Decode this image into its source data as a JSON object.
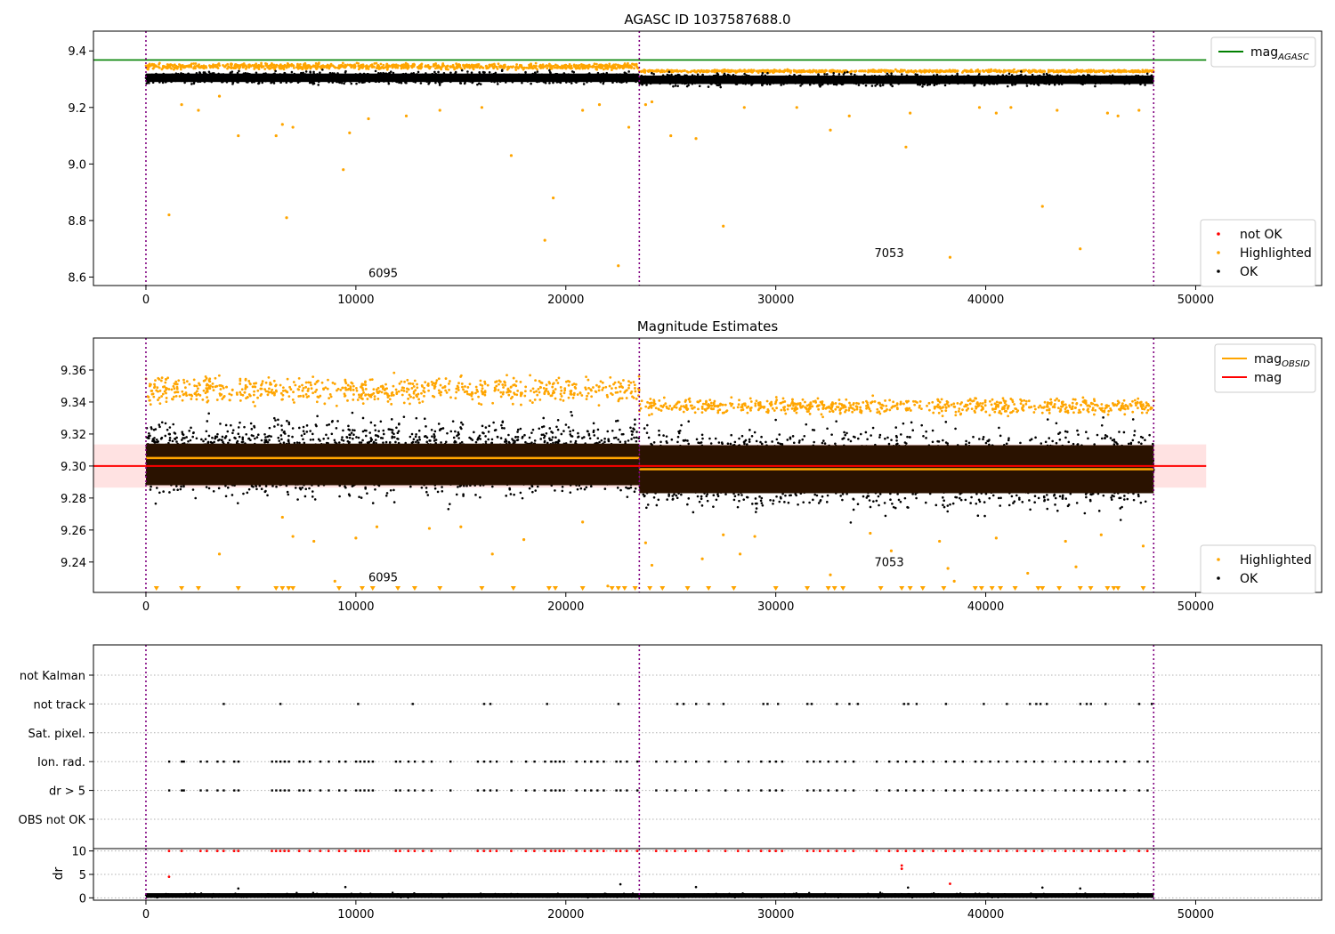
{
  "chart_data": [
    {
      "type": "scatter",
      "title": "AGASC ID 1037587688.0",
      "xlim": [
        -2500,
        56000
      ],
      "ylim": [
        8.57,
        9.47
      ],
      "xticks": [
        0,
        10000,
        20000,
        30000,
        40000,
        50000
      ],
      "xticklabels": [
        "0",
        "10000",
        "20000",
        "30000",
        "40000",
        "50000"
      ],
      "yticks": [
        8.6,
        8.8,
        9.0,
        9.2,
        9.4
      ],
      "yticklabels": [
        "8.6",
        "8.8",
        "9.0",
        "9.2",
        "9.4"
      ],
      "obs_boundaries": [
        0,
        23500,
        48000
      ],
      "obs_labels": [
        {
          "text": "6095",
          "x": 11300,
          "y": 8.6
        },
        {
          "text": "7053",
          "x": 35400,
          "y": 8.67
        }
      ],
      "lines": [
        {
          "name": "mag_AGASC",
          "y": 9.368,
          "x": [
            -2500,
            50500
          ],
          "color": "#008000"
        }
      ],
      "ok_band": [
        {
          "x": [
            0,
            23500
          ],
          "y": [
            9.275,
            9.335
          ]
        },
        {
          "x": [
            23500,
            48000
          ],
          "y": [
            9.268,
            9.328
          ]
        }
      ],
      "highlighted_band": [
        {
          "x": [
            0,
            23500
          ],
          "y": [
            9.33,
            9.36
          ]
        },
        {
          "x": [
            23500,
            48000
          ],
          "y": [
            9.322,
            9.335
          ]
        }
      ],
      "highlighted_outliers": [
        [
          1100,
          8.82
        ],
        [
          1700,
          9.21
        ],
        [
          2500,
          9.19
        ],
        [
          3500,
          9.24
        ],
        [
          4400,
          9.1
        ],
        [
          6200,
          9.1
        ],
        [
          6500,
          9.14
        ],
        [
          6700,
          8.81
        ],
        [
          7000,
          9.13
        ],
        [
          9400,
          8.98
        ],
        [
          9700,
          9.11
        ],
        [
          10600,
          9.16
        ],
        [
          12400,
          9.17
        ],
        [
          14000,
          9.19
        ],
        [
          16000,
          9.2
        ],
        [
          17400,
          9.03
        ],
        [
          19000,
          8.73
        ],
        [
          19400,
          8.88
        ],
        [
          20800,
          9.19
        ],
        [
          21600,
          9.21
        ],
        [
          22500,
          8.64
        ],
        [
          23000,
          9.13
        ],
        [
          23800,
          9.21
        ],
        [
          24100,
          9.22
        ],
        [
          25000,
          9.1
        ],
        [
          26200,
          9.09
        ],
        [
          27500,
          8.78
        ],
        [
          28500,
          9.2
        ],
        [
          31000,
          9.2
        ],
        [
          32600,
          9.12
        ],
        [
          33500,
          9.17
        ],
        [
          36200,
          9.06
        ],
        [
          36400,
          9.18
        ],
        [
          38300,
          8.67
        ],
        [
          39700,
          9.2
        ],
        [
          40500,
          9.18
        ],
        [
          41200,
          9.2
        ],
        [
          42700,
          8.85
        ],
        [
          43400,
          9.19
        ],
        [
          44500,
          8.7
        ],
        [
          45800,
          9.18
        ],
        [
          46300,
          9.17
        ],
        [
          47300,
          9.19
        ]
      ],
      "legend_upper": [
        {
          "label": "mag",
          "subscript": "AGASC",
          "color": "#008000",
          "kind": "line"
        }
      ],
      "legend_lower": [
        {
          "label": "not OK",
          "color": "#ff0000",
          "kind": "dot"
        },
        {
          "label": "Highlighted",
          "color": "#ffa500",
          "kind": "dot"
        },
        {
          "label": "OK",
          "color": "#000000",
          "kind": "dot"
        }
      ]
    },
    {
      "type": "scatter",
      "title": "Magnitude Estimates",
      "xlim": [
        -2500,
        56000
      ],
      "ylim": [
        9.221,
        9.38
      ],
      "xticks": [
        0,
        10000,
        20000,
        30000,
        40000,
        50000
      ],
      "xticklabels": [
        "0",
        "10000",
        "20000",
        "30000",
        "40000",
        "50000"
      ],
      "yticks": [
        9.24,
        9.26,
        9.28,
        9.3,
        9.32,
        9.34,
        9.36
      ],
      "yticklabels": [
        "9.24",
        "9.26",
        "9.28",
        "9.30",
        "9.32",
        "9.34",
        "9.36"
      ],
      "obs_boundaries": [
        0,
        23500,
        48000
      ],
      "obs_labels": [
        {
          "text": "6095",
          "x": 11300,
          "y": 9.228
        },
        {
          "text": "7053",
          "x": 35400,
          "y": 9.2375
        }
      ],
      "mag": 9.3,
      "mag_band": [
        9.2865,
        9.3135
      ],
      "mag_obsid": [
        {
          "x": [
            0,
            23500
          ],
          "y": 9.305
        },
        {
          "x": [
            23500,
            48000
          ],
          "y": 9.298
        }
      ],
      "obs_bands": [
        {
          "x": [
            0,
            23500
          ],
          "y": [
            9.288,
            9.314
          ]
        },
        {
          "x": [
            23500,
            48000
          ],
          "y": [
            9.283,
            9.313
          ]
        }
      ],
      "ok_range": [
        {
          "x": [
            0,
            23500
          ],
          "y": [
            9.272,
            9.338
          ]
        },
        {
          "x": [
            23500,
            48000
          ],
          "y": [
            9.265,
            9.332
          ]
        }
      ],
      "highlighted_range": [
        {
          "x": [
            0,
            23500
          ],
          "y": [
            9.335,
            9.36
          ]
        },
        {
          "x": [
            23500,
            48000
          ],
          "y": [
            9.33,
            9.345
          ]
        }
      ],
      "highlighted_low": [
        [
          3500,
          9.245
        ],
        [
          6500,
          9.268
        ],
        [
          7000,
          9.256
        ],
        [
          8000,
          9.253
        ],
        [
          9000,
          9.228
        ],
        [
          10000,
          9.255
        ],
        [
          11000,
          9.262
        ],
        [
          13500,
          9.261
        ],
        [
          15000,
          9.262
        ],
        [
          16500,
          9.245
        ],
        [
          18000,
          9.254
        ],
        [
          20800,
          9.265
        ],
        [
          22000,
          9.225
        ],
        [
          23800,
          9.252
        ],
        [
          24100,
          9.238
        ],
        [
          26500,
          9.242
        ],
        [
          27500,
          9.257
        ],
        [
          28300,
          9.245
        ],
        [
          29000,
          9.256
        ],
        [
          32600,
          9.232
        ],
        [
          34500,
          9.258
        ],
        [
          35500,
          9.247
        ],
        [
          37800,
          9.253
        ],
        [
          38200,
          9.236
        ],
        [
          38500,
          9.228
        ],
        [
          40500,
          9.255
        ],
        [
          42000,
          9.233
        ],
        [
          43800,
          9.253
        ],
        [
          44300,
          9.237
        ],
        [
          45500,
          9.257
        ],
        [
          47500,
          9.25
        ]
      ],
      "clipped_low_x": [
        500,
        1700,
        2500,
        4400,
        6200,
        6500,
        6800,
        7000,
        9200,
        10300,
        10800,
        12000,
        12800,
        14000,
        16000,
        17500,
        19200,
        19500,
        20800,
        22200,
        22500,
        22800,
        23300,
        24000,
        24600,
        25800,
        26800,
        28000,
        30000,
        31500,
        32500,
        32800,
        33200,
        35000,
        36000,
        36400,
        37000,
        38000,
        39500,
        39800,
        40300,
        40700,
        41400,
        42500,
        42700,
        43500,
        44500,
        45000,
        45800,
        46100,
        46300,
        47500
      ],
      "legend_upper": [
        {
          "label": "mag",
          "subscript": "OBSID",
          "color": "#ffa500",
          "kind": "line"
        },
        {
          "label": "mag",
          "subscript": "",
          "color": "#ff0000",
          "kind": "line"
        }
      ],
      "legend_lower": [
        {
          "label": "Highlighted",
          "color": "#ffa500",
          "kind": "dot"
        },
        {
          "label": "OK",
          "color": "#000000",
          "kind": "dot"
        }
      ]
    },
    {
      "type": "scatter",
      "title": "",
      "xlim": [
        -2500,
        56000
      ],
      "categories": [
        "not Kalman",
        "not track",
        "Sat. pixel.",
        "Ion. rad.",
        "dr > 5",
        "OBS not OK"
      ],
      "obs_boundaries": [
        0,
        23500,
        48000
      ],
      "flags": {
        "not Kalman": [],
        "not track": [
          3700,
          6400,
          10100,
          12700,
          16100,
          16400,
          19100,
          22500,
          25300,
          25600,
          26200,
          26800,
          27500,
          29400,
          29600,
          30100,
          31500,
          31700,
          32900,
          33500,
          33900,
          36100,
          36300,
          36700,
          38100,
          39900,
          41000,
          42100,
          42400,
          42600,
          42900,
          44500,
          44800,
          45000,
          45700,
          47300,
          47900
        ],
        "Ion. rad.": [
          1100,
          1700,
          1800,
          2600,
          2900,
          3400,
          3700,
          4200,
          4400,
          6000,
          6200,
          6400,
          6600,
          6800,
          7300,
          7500,
          7800,
          8300,
          8700,
          9200,
          9500,
          10000,
          10200,
          10400,
          10600,
          10800,
          11900,
          12100,
          12500,
          12800,
          13200,
          13600,
          14500,
          15800,
          16100,
          16400,
          16700,
          17400,
          18100,
          18500,
          19000,
          19300,
          19500,
          19700,
          19900,
          20500,
          20900,
          21200,
          21500,
          21800,
          22400,
          22600,
          22900,
          23400,
          24300,
          24800,
          25200,
          25700,
          26200,
          26800,
          27600,
          28200,
          28700,
          29300,
          29700,
          30000,
          30300,
          31500,
          31800,
          32100,
          32500,
          32900,
          33300,
          33700,
          34800,
          35400,
          35800,
          36200,
          36600,
          37000,
          37500,
          38100,
          38500,
          38900,
          39500,
          39800,
          40200,
          40600,
          41000,
          41500,
          41900,
          42300,
          42700,
          43300,
          43800,
          44200,
          44600,
          45000,
          45400,
          45800,
          46200,
          46600,
          47300,
          47700
        ],
        "dr > 5": [
          1100,
          1700,
          1800,
          2600,
          2900,
          3400,
          3700,
          4200,
          4400,
          6000,
          6200,
          6400,
          6600,
          6800,
          7300,
          7500,
          7800,
          8300,
          8700,
          9200,
          9500,
          10000,
          10200,
          10400,
          10600,
          10800,
          11900,
          12100,
          12500,
          12800,
          13200,
          13600,
          14500,
          15800,
          16100,
          16400,
          16700,
          17400,
          18100,
          18500,
          19000,
          19300,
          19500,
          19700,
          19900,
          20500,
          20900,
          21200,
          21500,
          21800,
          22400,
          22600,
          22900,
          23400,
          24300,
          24800,
          25200,
          25700,
          26200,
          26800,
          27600,
          28200,
          28700,
          29300,
          29700,
          30000,
          30300,
          31500,
          31800,
          32100,
          32500,
          32900,
          33300,
          33700,
          34800,
          35400,
          35800,
          36200,
          36600,
          37000,
          37500,
          38100,
          38500,
          38900,
          39500,
          39800,
          40200,
          40600,
          41000,
          41500,
          41900,
          42300,
          42700,
          43300,
          43800,
          44200,
          44600,
          45000,
          45400,
          45800,
          46200,
          46600,
          47300,
          47700
        ],
        "Sat. pixel.": [],
        "OBS not OK": []
      }
    },
    {
      "type": "scatter",
      "title": "",
      "ylabel": "dr",
      "xlim": [
        -2500,
        56000
      ],
      "ylim": [
        -0.5,
        10.5
      ],
      "xticks": [
        0,
        10000,
        20000,
        30000,
        40000,
        50000
      ],
      "xticklabels": [
        "0",
        "10000",
        "20000",
        "30000",
        "40000",
        "50000"
      ],
      "yticks": [
        0,
        5,
        10
      ],
      "yticklabels": [
        "0",
        "5",
        "10"
      ],
      "obs_boundaries": [
        0,
        23500,
        48000
      ],
      "ok_band": [
        0,
        1
      ],
      "red_at_10_x": [
        1100,
        1700,
        2600,
        2900,
        3400,
        3700,
        4200,
        4400,
        6000,
        6200,
        6400,
        6600,
        6800,
        7300,
        7800,
        8300,
        8700,
        9200,
        9500,
        10000,
        10200,
        10400,
        10600,
        11900,
        12100,
        12500,
        12800,
        13200,
        13600,
        14500,
        15800,
        16100,
        16400,
        16700,
        17400,
        18100,
        18500,
        19000,
        19300,
        19500,
        19700,
        19900,
        20500,
        20900,
        21200,
        21500,
        21800,
        22400,
        22600,
        22900,
        23400,
        24300,
        24800,
        25200,
        25700,
        26200,
        26800,
        27600,
        28200,
        28700,
        29300,
        29700,
        30000,
        30300,
        31500,
        31800,
        32100,
        32500,
        32900,
        33300,
        33700,
        34800,
        35400,
        35800,
        36200,
        36600,
        37000,
        37500,
        38100,
        38500,
        38900,
        39500,
        39800,
        40200,
        40600,
        41000,
        41500,
        41900,
        42300,
        42700,
        43300,
        43800,
        44200,
        44600,
        45000,
        45400,
        45800,
        46200,
        46600,
        47300,
        47700
      ],
      "red_outliers": [
        [
          1100,
          4.5
        ],
        [
          36000,
          6.2
        ],
        [
          36000,
          6.9
        ],
        [
          38300,
          3.0
        ]
      ],
      "black_outliers": [
        [
          4400,
          2.0
        ],
        [
          9500,
          2.3
        ],
        [
          22600,
          2.9
        ],
        [
          26200,
          2.3
        ],
        [
          36300,
          2.2
        ],
        [
          42700,
          2.2
        ],
        [
          44500,
          2.0
        ]
      ]
    }
  ]
}
